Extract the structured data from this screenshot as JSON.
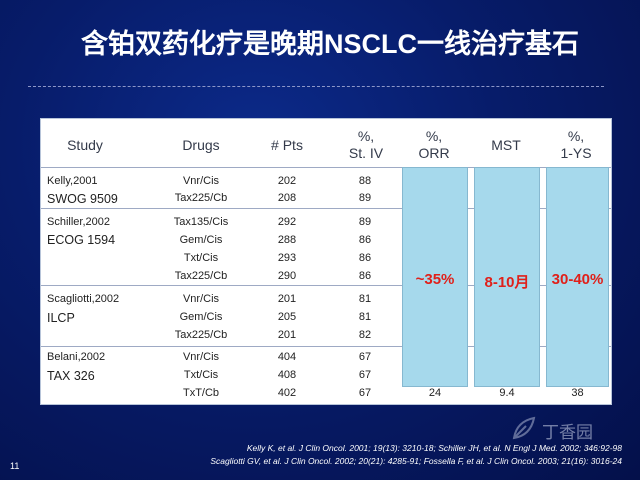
{
  "slide": {
    "title": "含铂双药化疗是晚期NSCLC一线治疗基石",
    "page_number": "11",
    "watermark": "丁香园"
  },
  "table": {
    "headers": [
      {
        "line1": "Study",
        "line2": ""
      },
      {
        "line1": "Drugs",
        "line2": ""
      },
      {
        "line1": "# Pts",
        "line2": ""
      },
      {
        "line1": "%,",
        "line2": "St. IV"
      },
      {
        "line1": "%,",
        "line2": "ORR"
      },
      {
        "line1": "MST",
        "line2": ""
      },
      {
        "line1": "%,",
        "line2": "1-YS"
      }
    ],
    "groups": [
      {
        "author": "Kelly,2001",
        "trial": "SWOG 9509",
        "rows": [
          {
            "drug": "Vnr/Cis",
            "pts": "202",
            "st4": "88"
          },
          {
            "drug": "Tax225/Cb",
            "pts": "208",
            "st4": "89"
          }
        ]
      },
      {
        "author": "Schiller,2002",
        "trial": "ECOG 1594",
        "rows": [
          {
            "drug": "Tax135/Cis",
            "pts": "292",
            "st4": "89"
          },
          {
            "drug": "Gem/Cis",
            "pts": "288",
            "st4": "86"
          },
          {
            "drug": "Txt/Cis",
            "pts": "293",
            "st4": "86"
          },
          {
            "drug": "Tax225/Cb",
            "pts": "290",
            "st4": "86"
          }
        ]
      },
      {
        "author": "Scagliotti,2002",
        "trial": "ILCP",
        "rows": [
          {
            "drug": "Vnr/Cis",
            "pts": "201",
            "st4": "81"
          },
          {
            "drug": "Gem/Cis",
            "pts": "205",
            "st4": "81"
          },
          {
            "drug": "Tax225/Cb",
            "pts": "201",
            "st4": "82"
          }
        ]
      },
      {
        "author": "Belani,2002",
        "trial": "TAX 326",
        "rows": [
          {
            "drug": "Vnr/Cis",
            "pts": "404",
            "st4": "67"
          },
          {
            "drug": "Txt/Cis",
            "pts": "408",
            "st4": "67"
          },
          {
            "drug": "TxT/Cb",
            "pts": "402",
            "st4": "67"
          }
        ]
      }
    ],
    "last_row_extra": {
      "orr": "24",
      "mst": "9.4",
      "ys": "38"
    },
    "highlights": {
      "orr": "~35%",
      "mst": "8-10月",
      "ys": "30-40%"
    }
  },
  "footnotes": [
    "Kelly K, et al. J Clin Oncol. 2001; 19(13): 3210-18; Schiller JH, et al. N Engl J Med. 2002; 346:92-98",
    "Scagliotti GV, et al. J Clin Oncol. 2002; 20(21): 4285-91; Fossella F, et al. J Clin Oncol. 2003; 21(16): 3016-24"
  ],
  "colors": {
    "highlight": "#a6d9ec",
    "highlight_text": "#e0201a"
  }
}
